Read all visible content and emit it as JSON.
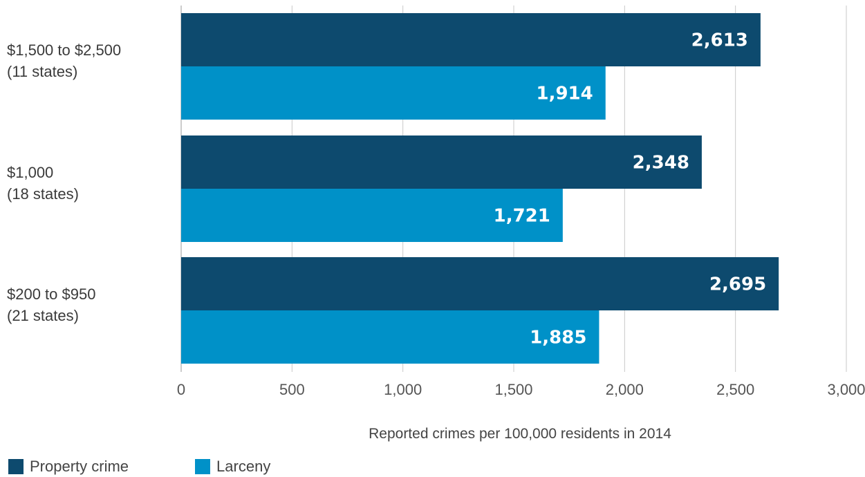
{
  "chart_data": {
    "type": "bar",
    "orientation": "horizontal",
    "categories": [
      [
        "$1,500 to $2,500",
        "(11 states)"
      ],
      [
        "$1,000",
        "(18 states)"
      ],
      [
        "$200 to $950",
        "(21 states)"
      ]
    ],
    "series": [
      {
        "name": "Property crime",
        "color": "#0d4a6e",
        "values": [
          2613,
          2348,
          2695
        ],
        "labels": [
          "2,613",
          "2,348",
          "2,695"
        ]
      },
      {
        "name": "Larceny",
        "color": "#0091c8",
        "values": [
          1914,
          1721,
          1885
        ],
        "labels": [
          "1,914",
          "1,721",
          "1,885"
        ]
      }
    ],
    "xlim": [
      0,
      3000
    ],
    "xticks": [
      0,
      500,
      1000,
      1500,
      2000,
      2500,
      3000
    ],
    "xtick_labels": [
      "0",
      "500",
      "1,000",
      "1,500",
      "2,000",
      "2,500",
      "3,000"
    ],
    "xlabel": "Reported crimes per 100,000 residents in 2014",
    "grid": "vertical",
    "legend_position": "bottom-left"
  }
}
